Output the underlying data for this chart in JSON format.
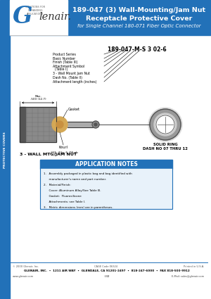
{
  "title_line1": "189-047 (3) Wall-Mounting/Jam Nut",
  "title_line2": "Receptacle Protective Cover",
  "title_line3": "for Single Channel 180-071 Fiber Optic Connector",
  "header_bg": "#2271b8",
  "page_bg": "#ffffff",
  "part_number_label": "189-047-M-S 3 02-6",
  "callout_labels": [
    "Product Series",
    "Basic Number",
    "Finish (Table III)",
    "Attachment Symbol",
    "  (Table I)",
    "3 - Wall Mount Jam Nut",
    "Dash No. (Table II)",
    "Attachment length (inches)"
  ],
  "diagram_label": "3 - WALL MTG/JAM NUT",
  "solid_ring_label1": "SOLID RING",
  "solid_ring_label2": "DASH NO 07 THRU 12",
  "dim_label": ".500 (12.7)",
  "dim_label2": "Max.",
  "dim_label3": ".215 -32g- 6, DS pb",
  "app_notes_title": "APPLICATION NOTES",
  "app_notes_bg": "#2271b8",
  "app_notes_lines": [
    "1.   Assembly packaged in plastic bag and bag identified with",
    "      manufacturer's name and part number.",
    "2.   Material/Finish:",
    "      Cover: Aluminum Alloy/See Table III.",
    "      Gasket:  Fluorosilicone",
    "      Attachments: see Table I.",
    "3.   Metric dimensions (mm) are in parentheses."
  ],
  "footer_copy": "© 2000 Glenair, Inc.",
  "footer_cage": "CAGE Code 06324",
  "footer_printed": "Printed in U.S.A.",
  "footer_address": "GLENAIR, INC.  •  1211 AIR WAY  •  GLENDALE, CA 91201-2497  •  818-247-6000  •  FAX 818-500-9912",
  "footer_web": "www.glenair.com",
  "footer_page": "I-32",
  "footer_email": "E-Mail: sales@glenair.com"
}
